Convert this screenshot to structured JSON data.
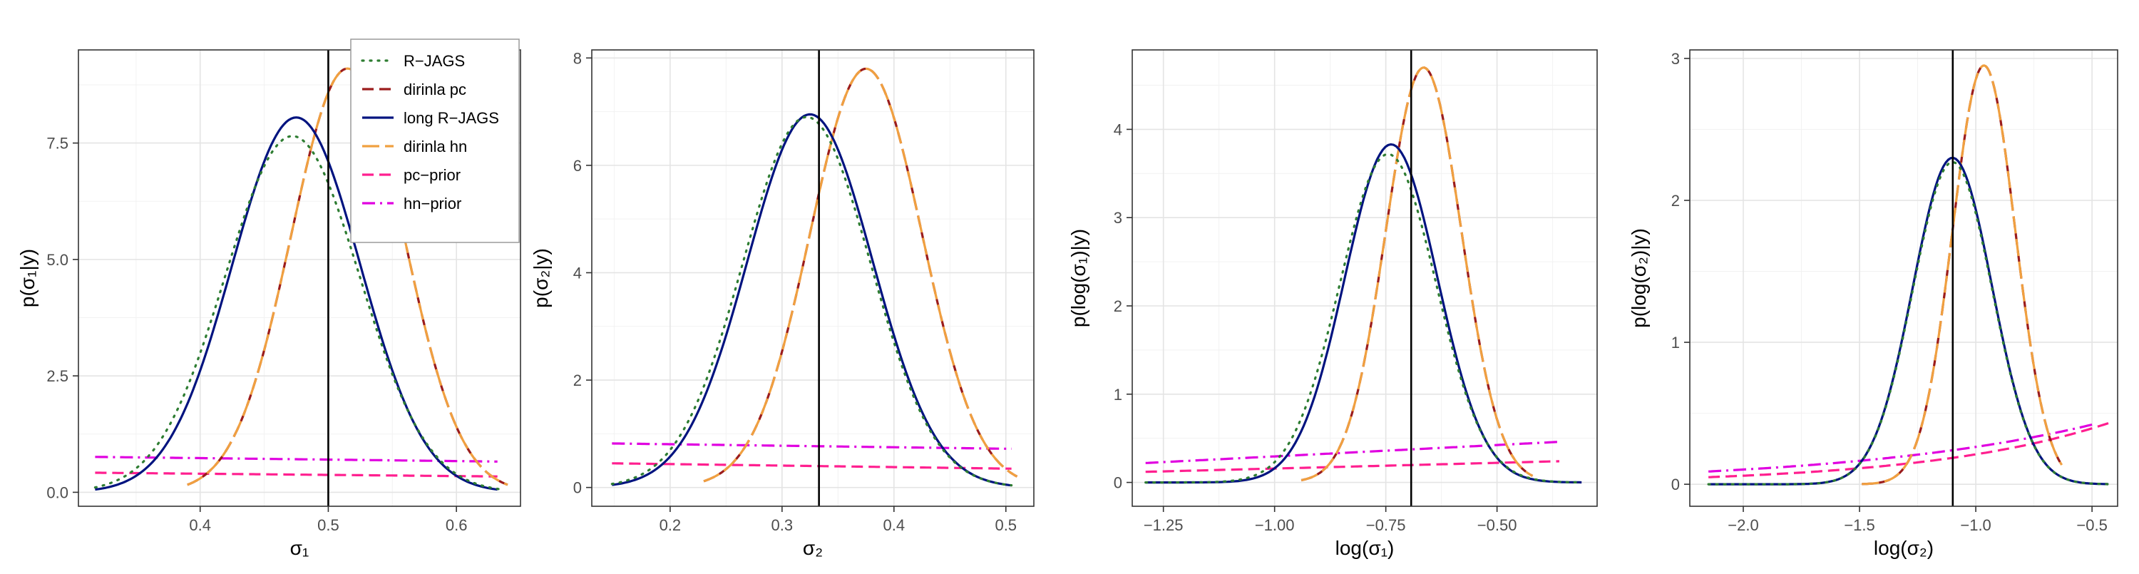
{
  "colors": {
    "r_jags": "#2e7d32",
    "dirinla_pc": "#9b1c1c",
    "long_r_jags": "#00137f",
    "dirinla_hn": "#f0a040",
    "pc_prior": "#ff1f8f",
    "hn_prior": "#e000e0",
    "grid_major": "#e4e4e4",
    "grid_minor": "#f2f2f2",
    "panel_border": "#333333",
    "true_value_line": "#000000"
  },
  "legend": {
    "entries": [
      {
        "key": "r_jags",
        "label": "R−JAGS",
        "dash": "dot"
      },
      {
        "key": "dirinla_pc",
        "label": "dirinla pc",
        "dash": "dash"
      },
      {
        "key": "long_r_jags",
        "label": "long R−JAGS",
        "dash": "solid"
      },
      {
        "key": "dirinla_hn",
        "label": "dirinla hn",
        "dash": "dashlong"
      },
      {
        "key": "pc_prior",
        "label": "pc−prior",
        "dash": "dash"
      },
      {
        "key": "hn_prior",
        "label": "hn−prior",
        "dash": "dotdash"
      }
    ],
    "placement": "top-right of first panel"
  },
  "chart_data": [
    {
      "type": "line",
      "xlabel": "σ₁",
      "ylabel": "p(σ₁|y)",
      "xlim": [
        0.305,
        0.65
      ],
      "ylim": [
        -0.3,
        9.5
      ],
      "xticks": [
        0.4,
        0.5,
        0.6
      ],
      "xtick_labels": [
        "0.4",
        "0.5",
        "0.6"
      ],
      "yticks": [
        0,
        2.5,
        5,
        7.5
      ],
      "ytick_labels": [
        "0.0",
        "2.5",
        "5.0",
        "7.5"
      ],
      "true_value": 0.5,
      "grid": true,
      "series": [
        {
          "name": "R−JAGS",
          "key": "r_jags",
          "shape": "normal",
          "mean": 0.472,
          "peak": 7.65,
          "sd": 0.0525,
          "x_range": [
            0.318,
            0.635
          ]
        },
        {
          "name": "long R−JAGS",
          "key": "long_r_jags",
          "shape": "normal",
          "mean": 0.475,
          "peak": 8.05,
          "sd": 0.05,
          "x_range": [
            0.318,
            0.632
          ]
        },
        {
          "name": "dirinla pc",
          "key": "dirinla_pc",
          "shape": "normal",
          "mean": 0.515,
          "peak": 9.1,
          "sd": 0.044,
          "x_range": [
            0.39,
            0.64
          ]
        },
        {
          "name": "dirinla hn",
          "key": "dirinla_hn",
          "shape": "normal",
          "mean": 0.515,
          "peak": 9.1,
          "sd": 0.044,
          "x_range": [
            0.39,
            0.64
          ]
        },
        {
          "name": "pc−prior",
          "key": "pc_prior",
          "shape": "linear",
          "y_start": 0.42,
          "y_end": 0.34,
          "x_range": [
            0.318,
            0.632
          ]
        },
        {
          "name": "hn−prior",
          "key": "hn_prior",
          "shape": "linear",
          "y_start": 0.76,
          "y_end": 0.66,
          "x_range": [
            0.318,
            0.632
          ]
        }
      ]
    },
    {
      "type": "line",
      "xlabel": "σ₂",
      "ylabel": "p(σ₂|y)",
      "xlim": [
        0.13,
        0.525
      ],
      "ylim": [
        -0.35,
        8.15
      ],
      "xticks": [
        0.2,
        0.3,
        0.4,
        0.5
      ],
      "xtick_labels": [
        "0.2",
        "0.3",
        "0.4",
        "0.5"
      ],
      "yticks": [
        0,
        2,
        4,
        6,
        8
      ],
      "ytick_labels": [
        "0",
        "2",
        "4",
        "6",
        "8"
      ],
      "true_value": 0.333,
      "grid": true,
      "series": [
        {
          "name": "R−JAGS",
          "key": "r_jags",
          "shape": "normal",
          "mean": 0.322,
          "peak": 6.9,
          "sd": 0.057,
          "x_range": [
            0.148,
            0.505
          ]
        },
        {
          "name": "long R−JAGS",
          "key": "long_r_jags",
          "shape": "normal",
          "mean": 0.325,
          "peak": 6.95,
          "sd": 0.056,
          "x_range": [
            0.148,
            0.505
          ]
        },
        {
          "name": "dirinla pc",
          "key": "dirinla_pc",
          "shape": "normal",
          "mean": 0.375,
          "peak": 7.8,
          "sd": 0.05,
          "x_range": [
            0.23,
            0.51
          ]
        },
        {
          "name": "dirinla hn",
          "key": "dirinla_hn",
          "shape": "normal",
          "mean": 0.375,
          "peak": 7.8,
          "sd": 0.05,
          "x_range": [
            0.23,
            0.51
          ]
        },
        {
          "name": "pc−prior",
          "key": "pc_prior",
          "shape": "linear",
          "y_start": 0.45,
          "y_end": 0.35,
          "x_range": [
            0.148,
            0.505
          ]
        },
        {
          "name": "hn−prior",
          "key": "hn_prior",
          "shape": "linear",
          "y_start": 0.82,
          "y_end": 0.72,
          "x_range": [
            0.148,
            0.505
          ]
        }
      ]
    },
    {
      "type": "line",
      "xlabel": "log(σ₁)",
      "ylabel": "p(log(σ₁)|y)",
      "xlim": [
        -1.32,
        -0.275
      ],
      "ylim": [
        -0.27,
        4.9
      ],
      "xticks": [
        -1.25,
        -1.0,
        -0.75,
        -0.5
      ],
      "xtick_labels": [
        "−1.25",
        "−1.00",
        "−0.75",
        "−0.50"
      ],
      "yticks": [
        0,
        1,
        2,
        3,
        4
      ],
      "ytick_labels": [
        "0",
        "1",
        "2",
        "3",
        "4"
      ],
      "true_value": -0.693,
      "grid": true,
      "series": [
        {
          "name": "R−JAGS",
          "key": "r_jags",
          "shape": "normal",
          "mean": -0.745,
          "peak": 3.72,
          "sd": 0.108,
          "x_range": [
            -1.29,
            -0.31
          ]
        },
        {
          "name": "long R−JAGS",
          "key": "long_r_jags",
          "shape": "normal",
          "mean": -0.738,
          "peak": 3.83,
          "sd": 0.104,
          "x_range": [
            -1.29,
            -0.31
          ]
        },
        {
          "name": "dirinla pc",
          "key": "dirinla_pc",
          "shape": "normal",
          "mean": -0.665,
          "peak": 4.7,
          "sd": 0.085,
          "x_range": [
            -0.94,
            -0.42
          ]
        },
        {
          "name": "dirinla hn",
          "key": "dirinla_hn",
          "shape": "normal",
          "mean": -0.665,
          "peak": 4.7,
          "sd": 0.085,
          "x_range": [
            -0.94,
            -0.42
          ]
        },
        {
          "name": "pc−prior",
          "key": "pc_prior",
          "shape": "linear",
          "y_start": 0.12,
          "y_end": 0.24,
          "x_range": [
            -1.29,
            -0.36
          ]
        },
        {
          "name": "hn−prior",
          "key": "hn_prior",
          "shape": "linear",
          "y_start": 0.22,
          "y_end": 0.46,
          "x_range": [
            -1.29,
            -0.36
          ]
        }
      ]
    },
    {
      "type": "line",
      "xlabel": "log(σ₂)",
      "ylabel": "p(log(σ₂)|y)",
      "xlim": [
        -2.23,
        -0.39
      ],
      "ylim": [
        -0.155,
        3.06
      ],
      "xticks": [
        -2.0,
        -1.5,
        -1.0,
        -0.5
      ],
      "xtick_labels": [
        "−2.0",
        "−1.5",
        "−1.0",
        "−0.5"
      ],
      "yticks": [
        0,
        1,
        2,
        3
      ],
      "ytick_labels": [
        "0",
        "1",
        "2",
        "3"
      ],
      "true_value": -1.099,
      "grid": true,
      "series": [
        {
          "name": "R−JAGS",
          "key": "r_jags",
          "shape": "normal",
          "mean": -1.1,
          "peak": 2.27,
          "sd": 0.17,
          "x_range": [
            -2.15,
            -0.43
          ]
        },
        {
          "name": "long R−JAGS",
          "key": "long_r_jags",
          "shape": "normal",
          "mean": -1.1,
          "peak": 2.3,
          "sd": 0.17,
          "x_range": [
            -2.15,
            -0.43
          ]
        },
        {
          "name": "dirinla pc",
          "key": "dirinla_pc",
          "shape": "normal",
          "mean": -0.965,
          "peak": 2.95,
          "sd": 0.135,
          "x_range": [
            -1.49,
            -0.63
          ]
        },
        {
          "name": "dirinla hn",
          "key": "dirinla_hn",
          "shape": "normal",
          "mean": -0.965,
          "peak": 2.95,
          "sd": 0.135,
          "x_range": [
            -1.49,
            -0.63
          ]
        },
        {
          "name": "pc−prior",
          "key": "pc_prior",
          "shape": "exp",
          "y_start": 0.05,
          "y_end": 0.43,
          "x_range": [
            -2.15,
            -0.43
          ]
        },
        {
          "name": "hn−prior",
          "key": "hn_prior",
          "shape": "exp",
          "y_start": 0.09,
          "y_end": 0.42,
          "x_range": [
            -2.15,
            -0.5
          ]
        }
      ]
    }
  ]
}
